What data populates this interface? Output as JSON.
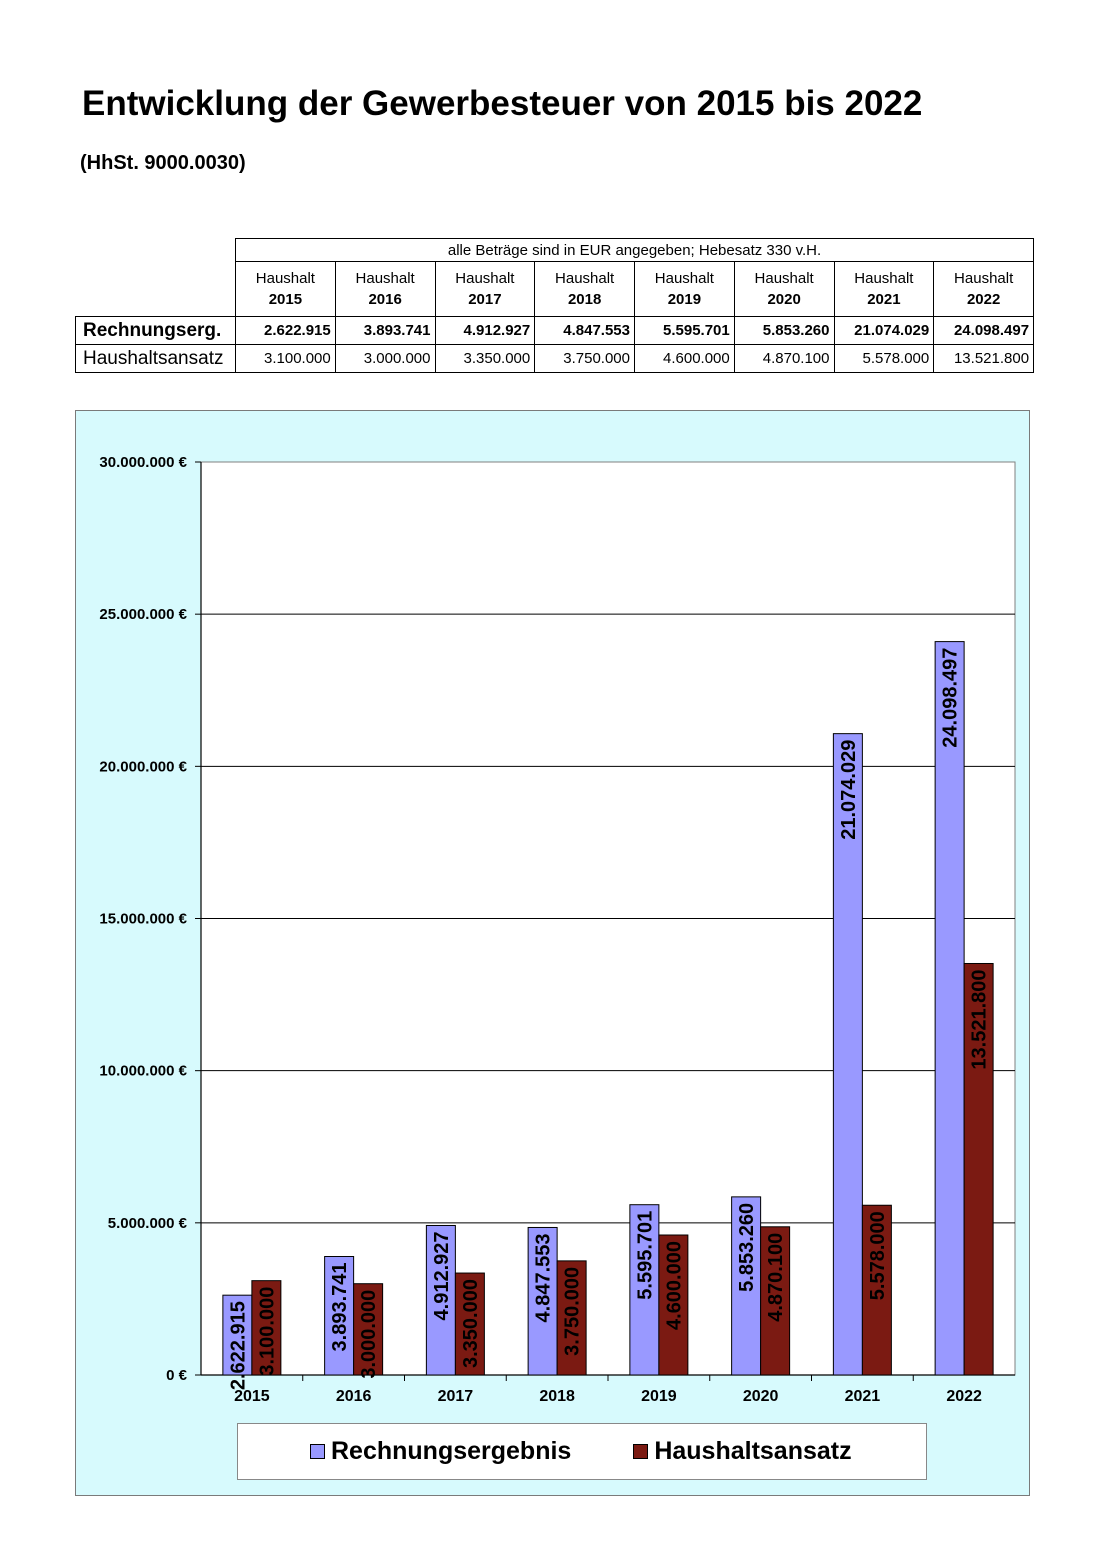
{
  "title": "Entwicklung der Gewerbesteuer von 2015 bis 2022",
  "subtitle": "(HhSt. 9000.0030)",
  "table": {
    "note": "alle Beträge sind in EUR angegeben; Hebesatz 330 v.H.",
    "column_prefix": "Haushalt",
    "years": [
      "2015",
      "2016",
      "2017",
      "2018",
      "2019",
      "2020",
      "2021",
      "2022"
    ],
    "rows": [
      {
        "label": "Rechnungserg.",
        "bold": true,
        "values": [
          "2.622.915",
          "3.893.741",
          "4.912.927",
          "4.847.553",
          "5.595.701",
          "5.853.260",
          "21.074.029",
          "24.098.497"
        ]
      },
      {
        "label": "Haushaltsansatz",
        "bold": false,
        "values": [
          "3.100.000",
          "3.000.000",
          "3.350.000",
          "3.750.000",
          "4.600.000",
          "4.870.100",
          "5.578.000",
          "13.521.800"
        ]
      }
    ]
  },
  "chart_data": {
    "type": "bar",
    "categories": [
      "2015",
      "2016",
      "2017",
      "2018",
      "2019",
      "2020",
      "2021",
      "2022"
    ],
    "series": [
      {
        "name": "Rechnungsergebnis",
        "color": "#9999ff",
        "values": [
          2622915,
          3893741,
          4912927,
          4847553,
          5595701,
          5853260,
          21074029,
          24098497
        ],
        "labels": [
          "2.622.915",
          "3.893.741",
          "4.912.927",
          "4.847.553",
          "5.595.701",
          "5.853.260",
          "21.074.029",
          "24.098.497"
        ]
      },
      {
        "name": "Haushaltsansatz",
        "color": "#7b1a12",
        "values": [
          3100000,
          3000000,
          3350000,
          3750000,
          4600000,
          4870100,
          5578000,
          13521800
        ],
        "labels": [
          "3.100.000",
          "3.000.000",
          "3.350.000",
          "3.750.000",
          "4.600.000",
          "4.870.100",
          "5.578.000",
          "13.521.800"
        ]
      }
    ],
    "ylim": [
      0,
      30000000
    ],
    "yticks": [
      0,
      5000000,
      10000000,
      15000000,
      20000000,
      25000000,
      30000000
    ],
    "ytick_labels": [
      "0 €",
      "5.000.000 €",
      "10.000.000 €",
      "15.000.000 €",
      "20.000.000 €",
      "25.000.000 €",
      "30.000.000 €"
    ],
    "grid": true,
    "legend_position": "bottom",
    "background_color": "#d7fafd",
    "plot_background": "#ffffff"
  }
}
